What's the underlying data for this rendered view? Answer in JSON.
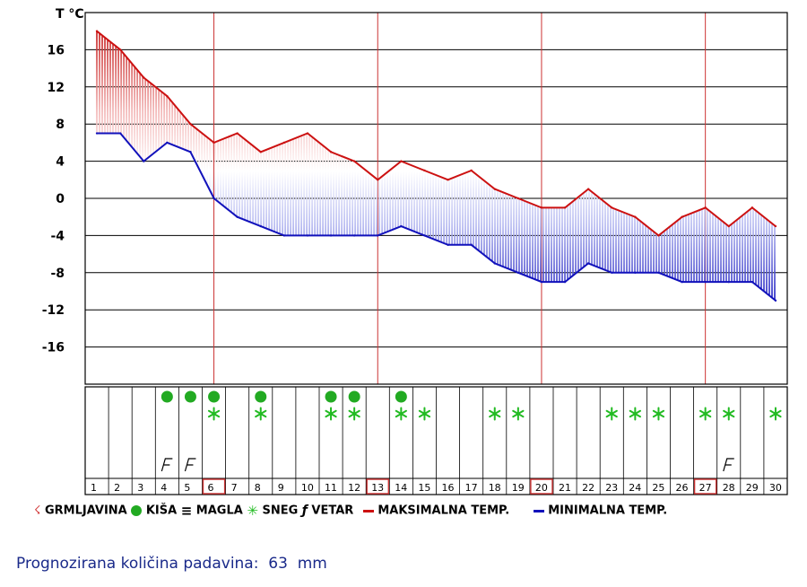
{
  "chart_data": {
    "type": "line",
    "y_axis_title": "T °C",
    "y_ticks": [
      "16",
      "12",
      "8",
      "4",
      "0",
      "-4",
      "-8",
      "-12",
      "-16"
    ],
    "ylim": [
      -20,
      20
    ],
    "x": [
      1,
      2,
      3,
      4,
      5,
      6,
      7,
      8,
      9,
      10,
      11,
      12,
      13,
      14,
      15,
      16,
      17,
      18,
      19,
      20,
      21,
      22,
      23,
      24,
      25,
      26,
      27,
      28,
      29,
      30
    ],
    "highlighted_days": [
      6,
      13,
      20,
      27
    ],
    "series": [
      {
        "name": "MAKSIMALNA TEMP.",
        "color": "#cc1111",
        "values": [
          18,
          16,
          13,
          11,
          8,
          6,
          7,
          5,
          6,
          7,
          5,
          4,
          2,
          4,
          3,
          2,
          3,
          1,
          0,
          -1,
          -1,
          1,
          -1,
          -2,
          -4,
          -2,
          -1,
          -3,
          -1,
          -3
        ]
      },
      {
        "name": "MINIMALNA TEMP.",
        "color": "#1111bb",
        "values": [
          7,
          7,
          4,
          6,
          5,
          0,
          -2,
          -3,
          -4,
          -4,
          -4,
          -4,
          -4,
          -3,
          -4,
          -5,
          -5,
          -7,
          -8,
          -9,
          -9,
          -7,
          -8,
          -8,
          -8,
          -9,
          -9,
          -9,
          -9,
          -11
        ]
      }
    ],
    "weather_symbols": {
      "rain": [
        4,
        5,
        6,
        8,
        11,
        12,
        14
      ],
      "snow": [
        6,
        8,
        11,
        12,
        14,
        15,
        18,
        19,
        23,
        24,
        25,
        27,
        28,
        30
      ],
      "wind": [
        4,
        5,
        28
      ],
      "thunder": [],
      "fog": []
    },
    "grid": true
  },
  "legend": {
    "thunder": "GRMLJAVINA",
    "rain": "KIŠA",
    "fog": "MAGLA",
    "snow": "SNEG",
    "wind": "VETAR",
    "max": "MAKSIMALNA TEMP.",
    "min": "MINIMALNA TEMP."
  },
  "forecast": {
    "label": "Prognozirana količina padavina:",
    "value": "63",
    "unit": "mm"
  },
  "colors": {
    "max_line": "#cc1111",
    "min_line": "#1111bb",
    "grid": "#000000",
    "week_marker": "#cc3333",
    "rain": "#22aa22",
    "snow": "#22bb22",
    "text_blue": "#1a2a8a"
  }
}
